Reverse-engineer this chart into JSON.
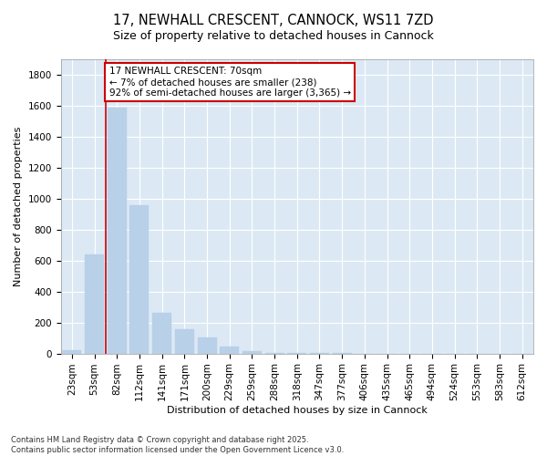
{
  "title": "17, NEWHALL CRESCENT, CANNOCK, WS11 7ZD",
  "subtitle": "Size of property relative to detached houses in Cannock",
  "xlabel": "Distribution of detached houses by size in Cannock",
  "ylabel": "Number of detached properties",
  "background_color": "#dce9f5",
  "bar_color": "#b8d0e8",
  "bar_edge_color": "#b8d0e8",
  "grid_color": "#ffffff",
  "annotation_line_color": "#cc0000",
  "annotation_text": "17 NEWHALL CRESCENT: 70sqm\n← 7% of detached houses are smaller (238)\n92% of semi-detached houses are larger (3,365) →",
  "categories": [
    "23sqm",
    "53sqm",
    "82sqm",
    "112sqm",
    "141sqm",
    "171sqm",
    "200sqm",
    "229sqm",
    "259sqm",
    "288sqm",
    "318sqm",
    "347sqm",
    "377sqm",
    "406sqm",
    "435sqm",
    "465sqm",
    "494sqm",
    "524sqm",
    "553sqm",
    "583sqm",
    "612sqm"
  ],
  "values": [
    20,
    640,
    1590,
    960,
    260,
    155,
    105,
    45,
    15,
    5,
    2,
    1,
    1,
    0,
    0,
    0,
    0,
    0,
    0,
    0,
    0
  ],
  "ylim": [
    0,
    1900
  ],
  "yticks": [
    0,
    200,
    400,
    600,
    800,
    1000,
    1200,
    1400,
    1600,
    1800
  ],
  "title_fontsize": 10.5,
  "subtitle_fontsize": 9,
  "label_fontsize": 8,
  "tick_fontsize": 7.5,
  "annotation_fontsize": 7.5,
  "footer_text": "Contains HM Land Registry data © Crown copyright and database right 2025.\nContains public sector information licensed under the Open Government Licence v3.0.",
  "footer_fontsize": 6,
  "annotation_box_facecolor": "#ffffff",
  "property_bin": 1
}
